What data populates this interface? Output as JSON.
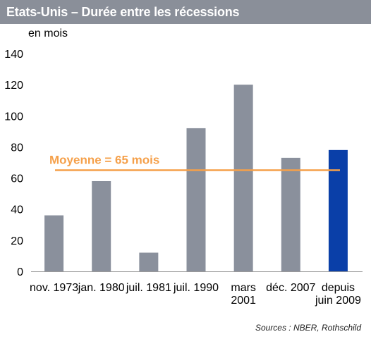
{
  "header": {
    "title": "Etats-Unis – Durée entre les récessions"
  },
  "source": "Sources : NBER, Rothschild",
  "colors": {
    "bar": "#8a909c",
    "bar_highlight": "#0a3fa8",
    "average_line": "#f5a04a",
    "title_bg": "#8a8f99"
  },
  "chart_data": {
    "type": "bar",
    "ylabel": "en mois",
    "ylim": [
      0,
      140
    ],
    "yticks": [
      0,
      20,
      40,
      60,
      80,
      100,
      120,
      140
    ],
    "categories": [
      [
        "nov. 1973"
      ],
      [
        "jan. 1980"
      ],
      [
        "juil. 1981"
      ],
      [
        "juil. 1990"
      ],
      [
        "mars",
        "2001"
      ],
      [
        "déc. 2007"
      ],
      [
        "depuis",
        "juin 2009"
      ]
    ],
    "values": [
      36,
      58,
      12,
      92,
      120,
      73,
      78
    ],
    "highlight_index": 6,
    "average": {
      "label": "Moyenne = 65 mois",
      "value": 65
    }
  }
}
